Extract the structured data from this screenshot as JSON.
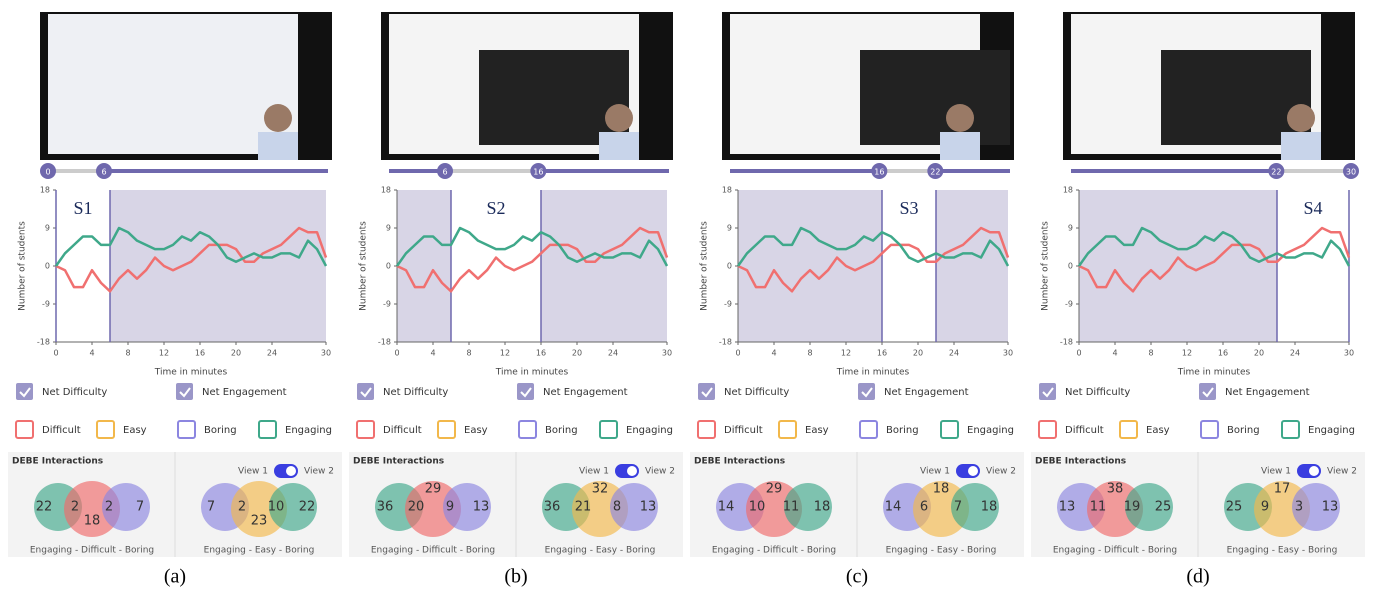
{
  "panels": [
    {
      "caption": "(a)",
      "slider": {
        "start": 0,
        "end": 6
      },
      "chart": {
        "type": "line",
        "segment_label": "S1",
        "ylabel": "Number of students",
        "xlabel": "Time in minutes",
        "xlim": [
          0,
          30
        ],
        "xticks": [
          0,
          4,
          8,
          12,
          16,
          20,
          24,
          30
        ],
        "ylim": [
          -18,
          18
        ],
        "yticks": [
          -18,
          -9,
          0,
          9,
          18
        ],
        "x": [
          0,
          1,
          2,
          3,
          4,
          5,
          6,
          7,
          8,
          9,
          10,
          11,
          12,
          13,
          14,
          15,
          16,
          17,
          18,
          19,
          20,
          21,
          22,
          23,
          24,
          25,
          26,
          27,
          28,
          29,
          30
        ],
        "series": [
          {
            "name": "Net Difficulty",
            "color": "#f07070",
            "values": [
              0,
              -1,
              -5,
              -5,
              -1,
              -4,
              -6,
              -3,
              -1,
              -3,
              -1,
              2,
              0,
              -1,
              0,
              1,
              3,
              5,
              5,
              5,
              4,
              1,
              1,
              3,
              4,
              5,
              7,
              9,
              8,
              8,
              2
            ]
          },
          {
            "name": "Net Engagement",
            "color": "#3fa88a",
            "values": [
              0,
              3,
              5,
              7,
              7,
              5,
              5,
              9,
              8,
              6,
              5,
              4,
              4,
              5,
              7,
              6,
              8,
              7,
              5,
              2,
              1,
              2,
              3,
              2,
              2,
              3,
              3,
              2,
              6,
              4,
              0
            ]
          }
        ]
      },
      "legend": [
        "Difficult",
        "Easy",
        "Boring",
        "Engaging"
      ],
      "legend_colors": [
        "#f07070",
        "#f2b84b",
        "#8c86e0",
        "#3fa88a"
      ],
      "debe": {
        "title": "DEBE Interactions",
        "toggle": [
          "View 1",
          "View 2"
        ],
        "venns": [
          {
            "label": "Engaging - Difficult - Boring",
            "colors": [
              "#3fa88a",
              "#f06a6a",
              "#8c86e0"
            ],
            "numbers": [
              22,
              2,
              18,
              2,
              7
            ]
          },
          {
            "label": "Engaging - Easy - Boring",
            "colors": [
              "#8c86e0",
              "#f2b84b",
              "#3fa88a"
            ],
            "numbers": [
              7,
              2,
              23,
              10,
              22
            ]
          }
        ]
      }
    },
    {
      "caption": "(b)",
      "slider": {
        "start": 6,
        "end": 16
      },
      "chart": {
        "type": "line",
        "segment_label": "S2",
        "ylabel": "Number of students",
        "xlabel": "Time in minutes",
        "xlim": [
          0,
          30
        ],
        "xticks": [
          0,
          4,
          8,
          12,
          16,
          20,
          24,
          30
        ],
        "ylim": [
          -18,
          18
        ],
        "yticks": [
          -18,
          -9,
          0,
          9,
          18
        ],
        "x": [
          0,
          1,
          2,
          3,
          4,
          5,
          6,
          7,
          8,
          9,
          10,
          11,
          12,
          13,
          14,
          15,
          16,
          17,
          18,
          19,
          20,
          21,
          22,
          23,
          24,
          25,
          26,
          27,
          28,
          29,
          30
        ],
        "series": [
          {
            "name": "Net Difficulty",
            "color": "#f07070",
            "values": [
              0,
              -1,
              -5,
              -5,
              -1,
              -4,
              -6,
              -3,
              -1,
              -3,
              -1,
              2,
              0,
              -1,
              0,
              1,
              3,
              5,
              5,
              5,
              4,
              1,
              1,
              3,
              4,
              5,
              7,
              9,
              8,
              8,
              2
            ]
          },
          {
            "name": "Net Engagement",
            "color": "#3fa88a",
            "values": [
              0,
              3,
              5,
              7,
              7,
              5,
              5,
              9,
              8,
              6,
              5,
              4,
              4,
              5,
              7,
              6,
              8,
              7,
              5,
              2,
              1,
              2,
              3,
              2,
              2,
              3,
              3,
              2,
              6,
              4,
              0
            ]
          }
        ]
      },
      "legend": [
        "Difficult",
        "Easy",
        "Boring",
        "Engaging"
      ],
      "legend_colors": [
        "#f07070",
        "#f2b84b",
        "#8c86e0",
        "#3fa88a"
      ],
      "debe": {
        "title": "DEBE Interactions",
        "toggle": [
          "View 1",
          "View 2"
        ],
        "venns": [
          {
            "label": "Engaging - Difficult - Boring",
            "colors": [
              "#3fa88a",
              "#f06a6a",
              "#8c86e0"
            ],
            "numbers": [
              36,
              20,
              29,
              9,
              13
            ]
          },
          {
            "label": "Engaging - Easy - Boring",
            "colors": [
              "#3fa88a",
              "#f2b84b",
              "#8c86e0"
            ],
            "numbers": [
              36,
              21,
              32,
              8,
              13
            ]
          }
        ]
      }
    },
    {
      "caption": "(c)",
      "slider": {
        "start": 16,
        "end": 22
      },
      "chart": {
        "type": "line",
        "segment_label": "S3",
        "ylabel": "Number of students",
        "xlabel": "Time in minutes",
        "xlim": [
          0,
          30
        ],
        "xticks": [
          0,
          4,
          8,
          12,
          16,
          20,
          24,
          30
        ],
        "ylim": [
          -18,
          18
        ],
        "yticks": [
          -18,
          -9,
          0,
          9,
          18
        ],
        "x": [
          0,
          1,
          2,
          3,
          4,
          5,
          6,
          7,
          8,
          9,
          10,
          11,
          12,
          13,
          14,
          15,
          16,
          17,
          18,
          19,
          20,
          21,
          22,
          23,
          24,
          25,
          26,
          27,
          28,
          29,
          30
        ],
        "series": [
          {
            "name": "Net Difficulty",
            "color": "#f07070",
            "values": [
              0,
              -1,
              -5,
              -5,
              -1,
              -4,
              -6,
              -3,
              -1,
              -3,
              -1,
              2,
              0,
              -1,
              0,
              1,
              3,
              5,
              5,
              5,
              4,
              1,
              1,
              3,
              4,
              5,
              7,
              9,
              8,
              8,
              2
            ]
          },
          {
            "name": "Net Engagement",
            "color": "#3fa88a",
            "values": [
              0,
              3,
              5,
              7,
              7,
              5,
              5,
              9,
              8,
              6,
              5,
              4,
              4,
              5,
              7,
              6,
              8,
              7,
              5,
              2,
              1,
              2,
              3,
              2,
              2,
              3,
              3,
              2,
              6,
              4,
              0
            ]
          }
        ]
      },
      "legend": [
        "Difficult",
        "Easy",
        "Boring",
        "Engaging"
      ],
      "legend_colors": [
        "#f07070",
        "#f2b84b",
        "#8c86e0",
        "#3fa88a"
      ],
      "debe": {
        "title": "DEBE Interactions",
        "toggle": [
          "View 1",
          "View 2"
        ],
        "venns": [
          {
            "label": "Engaging - Difficult - Boring",
            "colors": [
              "#8c86e0",
              "#f06a6a",
              "#3fa88a"
            ],
            "numbers": [
              14,
              10,
              29,
              11,
              18
            ]
          },
          {
            "label": "Engaging - Easy - Boring",
            "colors": [
              "#8c86e0",
              "#f2b84b",
              "#3fa88a"
            ],
            "numbers": [
              14,
              6,
              18,
              7,
              18
            ]
          }
        ]
      }
    },
    {
      "caption": "(d)",
      "slider": {
        "start": 22,
        "end": 30
      },
      "chart": {
        "type": "line",
        "segment_label": "S4",
        "ylabel": "Number of students",
        "xlabel": "Time in minutes",
        "xlim": [
          0,
          30
        ],
        "xticks": [
          0,
          4,
          8,
          12,
          16,
          20,
          24,
          30
        ],
        "ylim": [
          -18,
          18
        ],
        "yticks": [
          -18,
          -9,
          0,
          9,
          18
        ],
        "x": [
          0,
          1,
          2,
          3,
          4,
          5,
          6,
          7,
          8,
          9,
          10,
          11,
          12,
          13,
          14,
          15,
          16,
          17,
          18,
          19,
          20,
          21,
          22,
          23,
          24,
          25,
          26,
          27,
          28,
          29,
          30
        ],
        "series": [
          {
            "name": "Net Difficulty",
            "color": "#f07070",
            "values": [
              0,
              -1,
              -5,
              -5,
              -1,
              -4,
              -6,
              -3,
              -1,
              -3,
              -1,
              2,
              0,
              -1,
              0,
              1,
              3,
              5,
              5,
              5,
              4,
              1,
              1,
              3,
              4,
              5,
              7,
              9,
              8,
              8,
              2
            ]
          },
          {
            "name": "Net Engagement",
            "color": "#3fa88a",
            "values": [
              0,
              3,
              5,
              7,
              7,
              5,
              5,
              9,
              8,
              6,
              5,
              4,
              4,
              5,
              7,
              6,
              8,
              7,
              5,
              2,
              1,
              2,
              3,
              2,
              2,
              3,
              3,
              2,
              6,
              4,
              0
            ]
          }
        ]
      },
      "legend": [
        "Difficult",
        "Easy",
        "Boring",
        "Engaging"
      ],
      "legend_colors": [
        "#f07070",
        "#f2b84b",
        "#8c86e0",
        "#3fa88a"
      ],
      "debe": {
        "title": "DEBE Interactions",
        "toggle": [
          "View 1",
          "View 2"
        ],
        "venns": [
          {
            "label": "Engaging - Difficult - Boring",
            "colors": [
              "#8c86e0",
              "#f06a6a",
              "#3fa88a"
            ],
            "numbers": [
              13,
              11,
              38,
              19,
              25
            ]
          },
          {
            "label": "Engaging - Easy - Boring",
            "colors": [
              "#3fa88a",
              "#f2b84b",
              "#8c86e0"
            ],
            "numbers": [
              25,
              9,
              17,
              3,
              13
            ]
          }
        ]
      }
    }
  ]
}
